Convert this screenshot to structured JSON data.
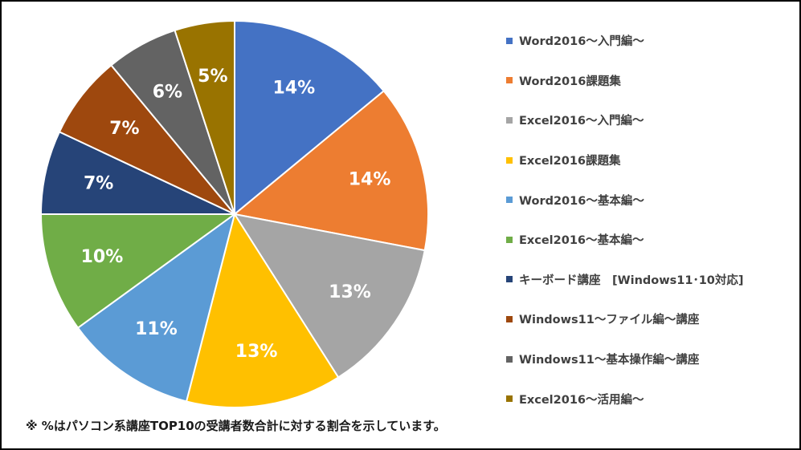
{
  "chart_data": {
    "type": "pie",
    "categories": [
      "Word2016～入門編～",
      "Word2016課題集",
      "Excel2016～入門編～",
      "Excel2016課題集",
      "Word2016～基本編～",
      "Excel2016～基本編～",
      "キーボード講座　[Windows11･10対応]",
      "Windows11～ファイル編～講座",
      "Windows11～基本操作編～講座",
      "Excel2016～活用編～"
    ],
    "values": [
      14,
      14,
      13,
      13,
      11,
      10,
      7,
      7,
      6,
      5
    ],
    "labels": [
      "14%",
      "14%",
      "13%",
      "13%",
      "11%",
      "10%",
      "7%",
      "7%",
      "6%",
      "5%"
    ],
    "colors": [
      "#4472C4",
      "#ED7D31",
      "#A5A5A5",
      "#FFC000",
      "#5B9BD5",
      "#70AD47",
      "#264478",
      "#9E480E",
      "#636363",
      "#997300"
    ],
    "legend_position": "right"
  },
  "footnote": "※ %はパソコン系講座TOP10の受講者数合計に対する割合を示しています。"
}
